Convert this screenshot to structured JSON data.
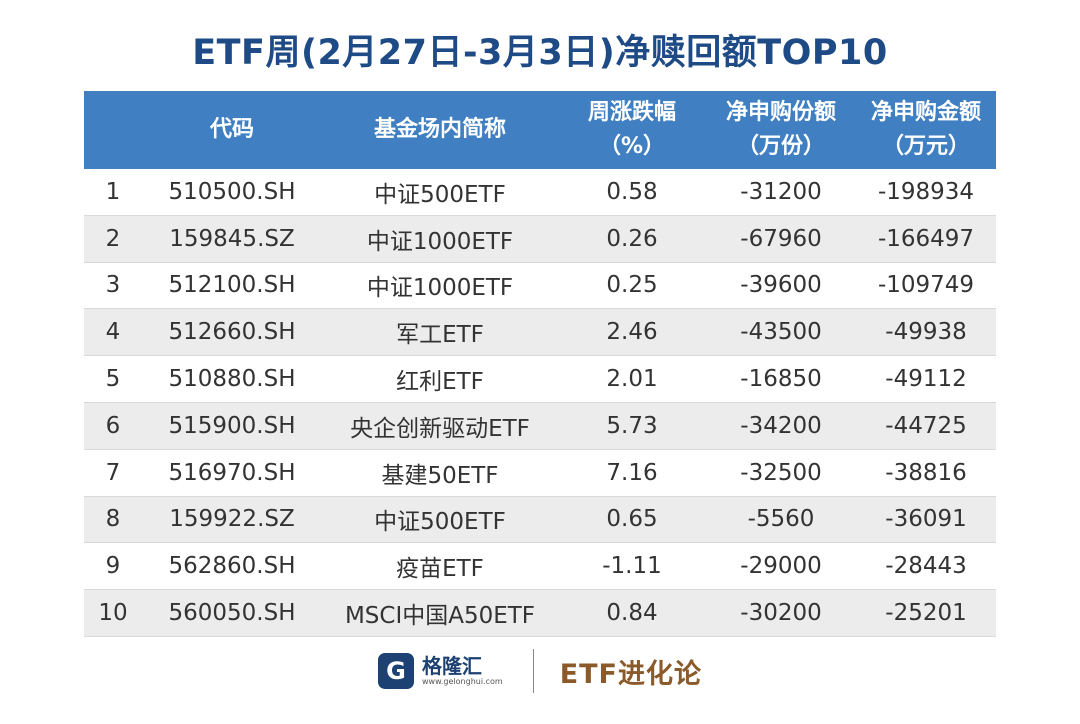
{
  "title": "ETF周(2月27日-3月3日)净赎回额TOP10",
  "table": {
    "headers": [
      {
        "line1": "",
        "line2": ""
      },
      {
        "line1": "代码",
        "line2": ""
      },
      {
        "line1": "基金场内简称",
        "line2": ""
      },
      {
        "line1": "周涨跌幅",
        "line2": "（%）"
      },
      {
        "line1": "净申购份额",
        "line2": "（万份）"
      },
      {
        "line1": "净申购金额",
        "line2": "（万元）"
      }
    ],
    "rows": [
      [
        "1",
        "510500.SH",
        "中证500ETF",
        "0.58",
        "-31200",
        "-198934"
      ],
      [
        "2",
        "159845.SZ",
        "中证1000ETF",
        "0.26",
        "-67960",
        "-166497"
      ],
      [
        "3",
        "512100.SH",
        "中证1000ETF",
        "0.25",
        "-39600",
        "-109749"
      ],
      [
        "4",
        "512660.SH",
        "军工ETF",
        "2.46",
        "-43500",
        "-49938"
      ],
      [
        "5",
        "510880.SH",
        "红利ETF",
        "2.01",
        "-16850",
        "-49112"
      ],
      [
        "6",
        "515900.SH",
        "央企创新驱动ETF",
        "5.73",
        "-34200",
        "-44725"
      ],
      [
        "7",
        "516970.SH",
        "基建50ETF",
        "7.16",
        "-32500",
        "-38816"
      ],
      [
        "8",
        "159922.SZ",
        "中证500ETF",
        "0.65",
        "-5560",
        "-36091"
      ],
      [
        "9",
        "562860.SH",
        "疫苗ETF",
        "-1.11",
        "-29000",
        "-28443"
      ],
      [
        "10",
        "560050.SH",
        "MSCI中国A50ETF",
        "0.84",
        "-30200",
        "-25201"
      ]
    ]
  },
  "footer": {
    "logo_glyph": "G",
    "brand_name": "格隆汇",
    "brand_url": "www.gelonghui.com",
    "column_name": "ETF进化论"
  }
}
